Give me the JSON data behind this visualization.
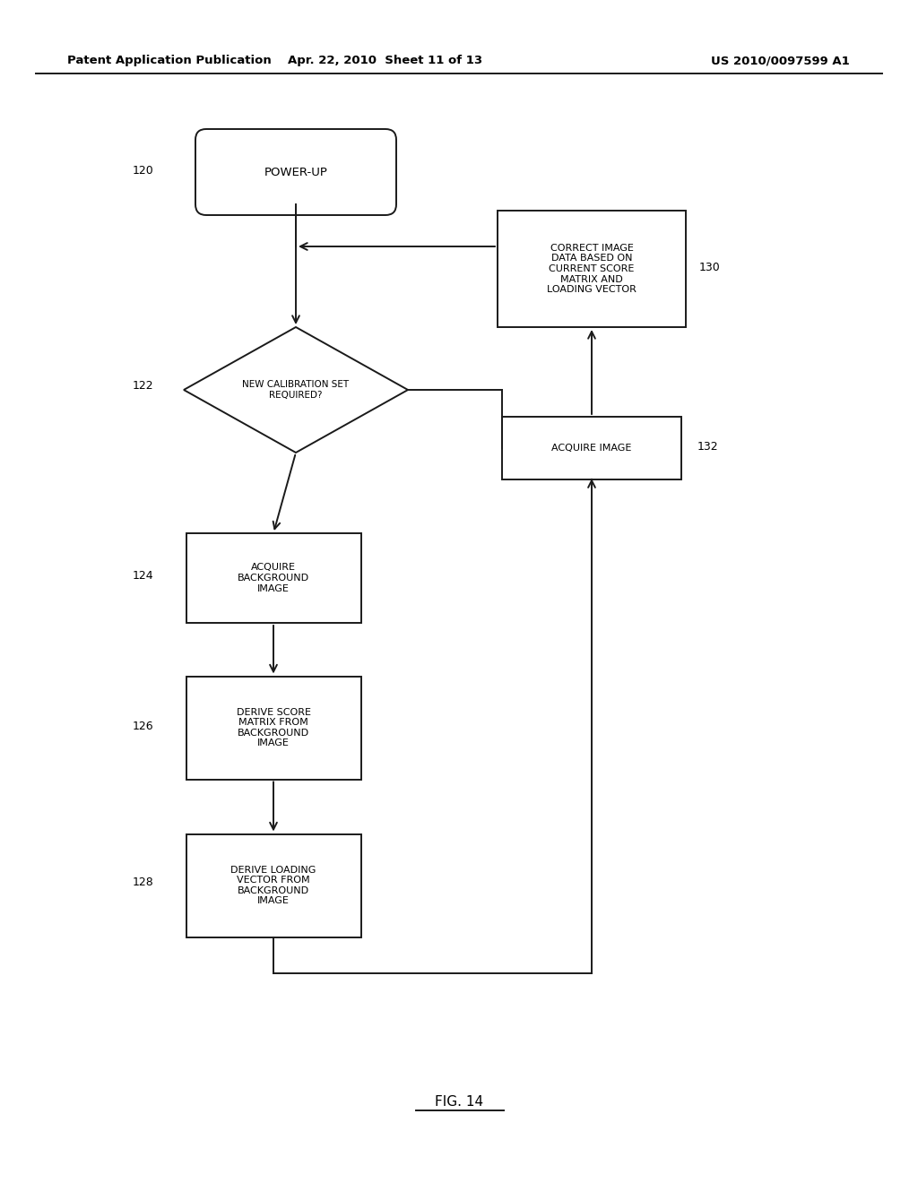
{
  "bg_color": "#ffffff",
  "line_color": "#1a1a1a",
  "header_left": "Patent Application Publication",
  "header_mid": "Apr. 22, 2010  Sheet 11 of 13",
  "header_right": "US 2010/0097599 A1",
  "footer_label": "FIG. 14",
  "font_size_node": 8.0,
  "font_size_header": 9.5,
  "font_size_id": 9.0,
  "font_size_footer": 11,
  "lw": 1.4
}
